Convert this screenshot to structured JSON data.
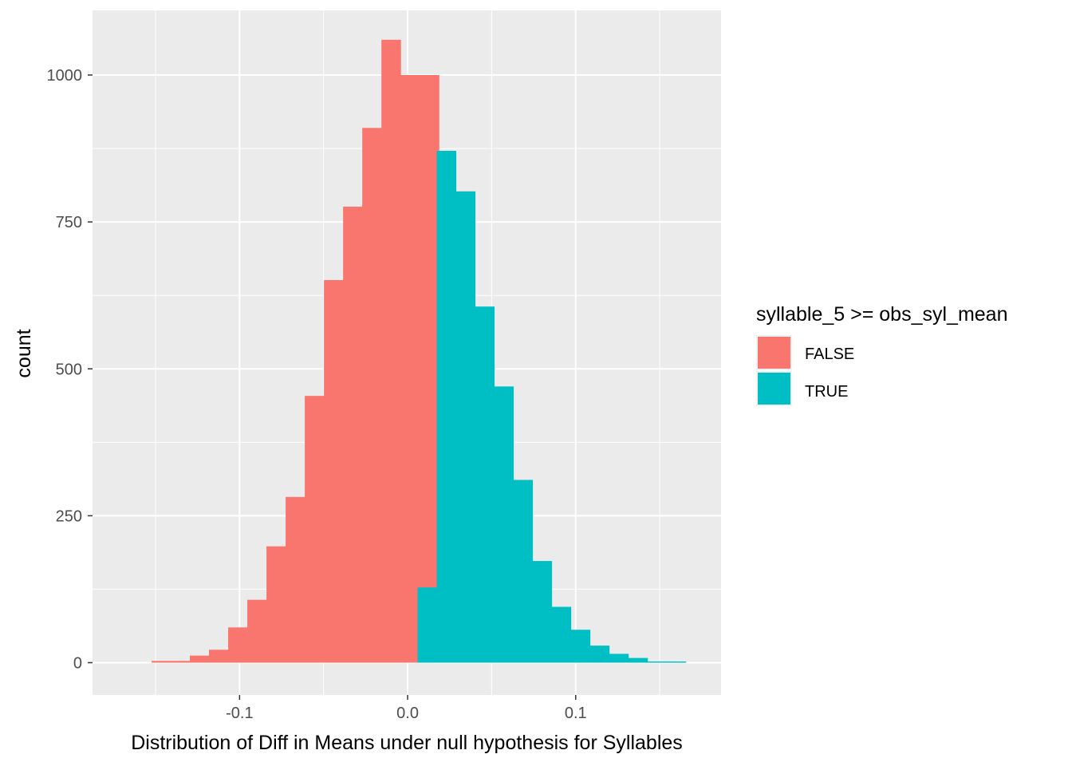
{
  "chart_data": {
    "type": "bar",
    "xlabel": "Distribution of Diff in Means under null hypothesis for Syllables",
    "ylabel": "count",
    "xlim": [
      -0.1875,
      0.1865
    ],
    "ylim": [
      -55,
      1110
    ],
    "x_ticks": [
      -0.1,
      0.0,
      0.1
    ],
    "x_tick_labels": [
      "-0.1",
      "0.0",
      "0.1"
    ],
    "y_ticks": [
      0,
      250,
      500,
      750,
      1000
    ],
    "y_tick_labels": [
      "0",
      "250",
      "500",
      "750",
      "1000"
    ],
    "grid": true,
    "legend": {
      "title": "syllable_5 >= obs_syl_mean",
      "placement": "right",
      "entries": [
        "FALSE",
        "TRUE"
      ]
    },
    "bin_width": 0.0114,
    "series": [
      {
        "name": "FALSE",
        "color": "#F8766D",
        "x_start": [
          -0.1524,
          -0.141,
          -0.1296,
          -0.1182,
          -0.1068,
          -0.0954,
          -0.084,
          -0.0726,
          -0.0612,
          -0.0498,
          -0.0384,
          -0.027,
          -0.0156,
          -0.0042,
          0.0072
        ],
        "values": [
          3,
          3,
          12,
          22,
          60,
          107,
          198,
          282,
          454,
          651,
          776,
          910,
          1060,
          1000,
          1000
        ]
      },
      {
        "name": "TRUE",
        "color": "#00BFC4",
        "x_start": [
          0.0059,
          0.0173,
          0.0287,
          0.0401,
          0.0515,
          0.0629,
          0.0743,
          0.0857,
          0.0971,
          0.1085,
          0.1199,
          0.1313,
          0.1427,
          0.1541
        ],
        "values": [
          128,
          871,
          802,
          606,
          470,
          311,
          173,
          95,
          56,
          29,
          15,
          8,
          2,
          2
        ]
      }
    ]
  }
}
